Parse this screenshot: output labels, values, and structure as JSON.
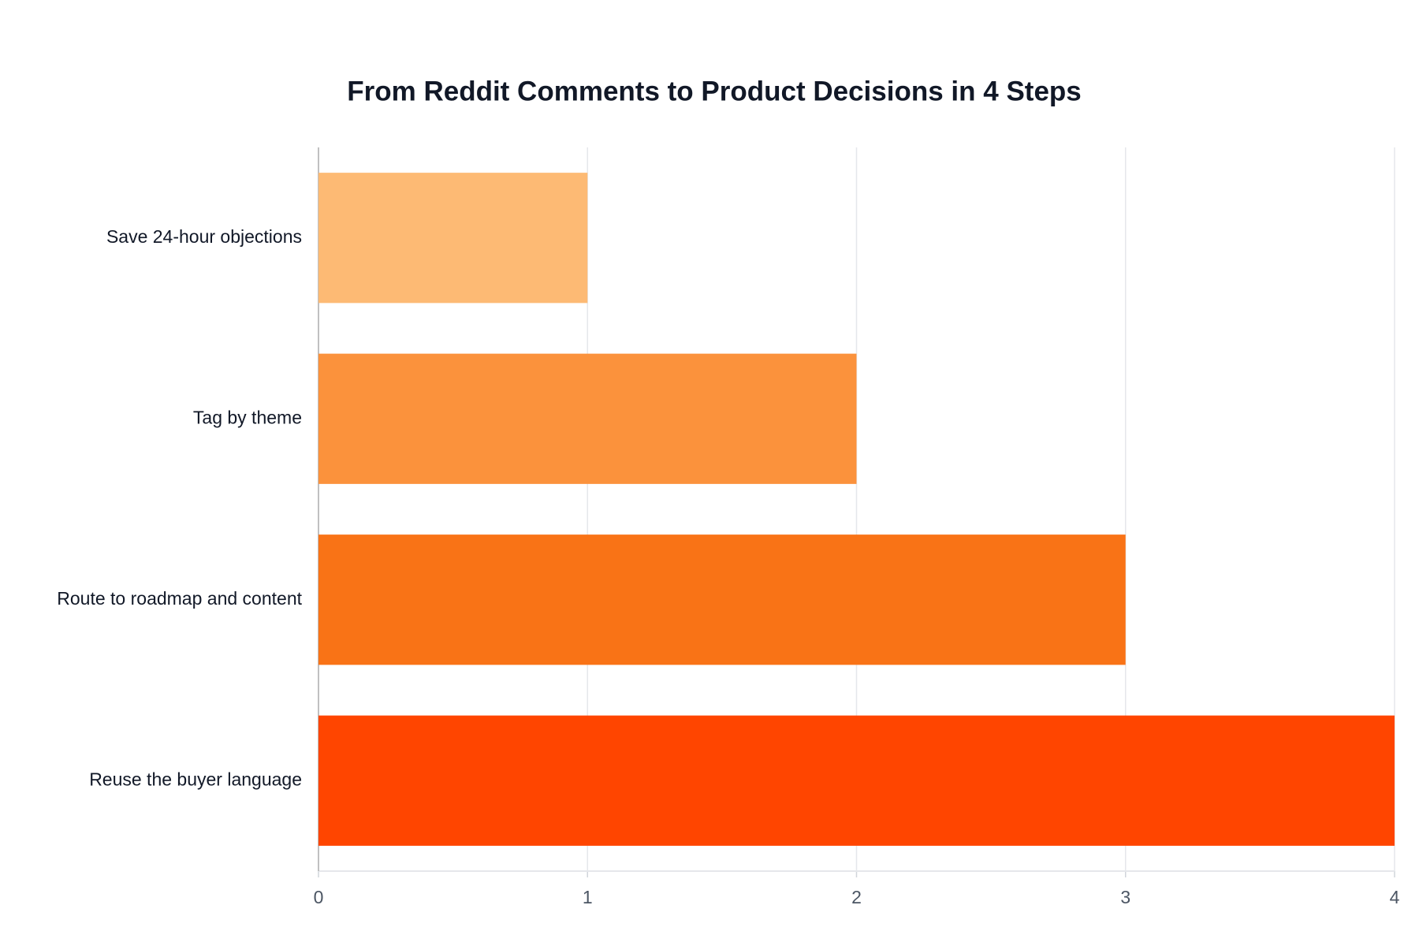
{
  "chart_data": {
    "type": "hbar",
    "title": "From Reddit Comments to Product Decisions in 4 Steps",
    "categories": [
      "Save 24-hour objections",
      "Tag by theme",
      "Route to roadmap and content",
      "Reuse the buyer language"
    ],
    "values": [
      1,
      2,
      3,
      4
    ],
    "colors": [
      "#fdba74",
      "#fb923c",
      "#f97316",
      "#ff4500"
    ],
    "xlim": [
      0,
      4
    ],
    "xticks": [
      0,
      1,
      2,
      3,
      4
    ],
    "grid": true
  }
}
